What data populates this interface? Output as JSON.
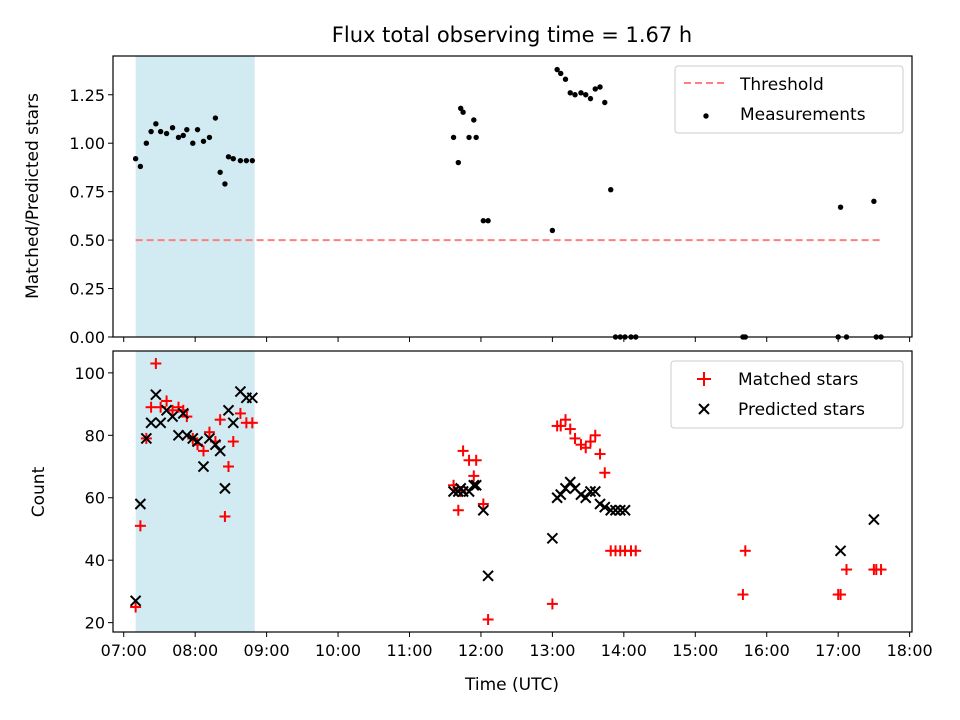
{
  "title": "Flux total observing time = 1.67 h",
  "xlabel": "Time (UTC)",
  "x_ticks": [
    "07:00",
    "08:00",
    "09:00",
    "10:00",
    "11:00",
    "12:00",
    "13:00",
    "14:00",
    "15:00",
    "16:00",
    "17:00",
    "18:00"
  ],
  "chart_data": [
    {
      "type": "scatter",
      "title": "Flux total observing time = 1.67 h",
      "xlabel": "",
      "ylabel": "Matched/Predicted stars",
      "xlim": [
        "06:51",
        "18:02"
      ],
      "ylim": [
        0,
        1.45
      ],
      "y_ticks": [
        "0.00",
        "0.25",
        "0.50",
        "0.75",
        "1.00",
        "1.25"
      ],
      "legend_position": "top-right",
      "shaded_interval": {
        "start": "07:10",
        "end": "08:50",
        "color": "#add8e6"
      },
      "threshold": {
        "name": "Threshold",
        "value": 0.5,
        "x_start": "07:10",
        "x_end": "17:35",
        "color": "#ff7f7f",
        "style": "dashed"
      },
      "series": [
        {
          "name": "Measurements",
          "marker": "dot",
          "color": "#000000",
          "x": [
            "07:10",
            "07:14",
            "07:19",
            "07:23",
            "07:27",
            "07:31",
            "07:36",
            "07:41",
            "07:46",
            "07:50",
            "07:53",
            "07:58",
            "08:02",
            "08:07",
            "08:12",
            "08:17",
            "08:21",
            "08:25",
            "08:28",
            "08:32",
            "08:38",
            "08:43",
            "08:48",
            "11:37",
            "11:41",
            "11:43",
            "11:45",
            "11:50",
            "11:54",
            "11:56",
            "12:02",
            "12:06",
            "13:00",
            "13:04",
            "13:07",
            "13:11",
            "13:15",
            "13:19",
            "13:24",
            "13:28",
            "13:32",
            "13:36",
            "13:40",
            "13:44",
            "13:49",
            "13:53",
            "13:57",
            "14:01",
            "14:06",
            "14:10",
            "15:40",
            "15:42",
            "17:00",
            "17:02",
            "17:07",
            "17:30",
            "17:32",
            "17:36"
          ],
          "y": [
            0.92,
            0.88,
            1.0,
            1.06,
            1.1,
            1.06,
            1.05,
            1.08,
            1.03,
            1.04,
            1.07,
            1.0,
            1.07,
            1.01,
            1.03,
            1.13,
            0.85,
            0.79,
            0.93,
            0.92,
            0.91,
            0.91,
            0.91,
            1.03,
            0.9,
            1.18,
            1.16,
            1.03,
            1.12,
            1.03,
            0.6,
            0.6,
            0.55,
            1.38,
            1.36,
            1.33,
            1.26,
            1.25,
            1.26,
            1.25,
            1.23,
            1.28,
            1.29,
            1.21,
            0.76,
            0.0,
            0.0,
            0.0,
            0.0,
            0.0,
            0.0,
            0.0,
            0.0,
            0.67,
            0.0,
            0.7,
            0.0,
            0.0
          ]
        }
      ]
    },
    {
      "type": "scatter",
      "title": "",
      "xlabel": "Time (UTC)",
      "ylabel": "Count",
      "xlim": [
        "06:51",
        "18:02"
      ],
      "ylim": [
        17,
        107
      ],
      "y_ticks": [
        "20",
        "40",
        "60",
        "80",
        "100"
      ],
      "legend_position": "top-right",
      "shaded_interval": {
        "start": "07:10",
        "end": "08:50",
        "color": "#add8e6"
      },
      "series": [
        {
          "name": "Matched stars",
          "marker": "plus",
          "color": "#ff0000",
          "x": [
            "07:10",
            "07:14",
            "07:19",
            "07:23",
            "07:27",
            "07:31",
            "07:36",
            "07:41",
            "07:46",
            "07:50",
            "07:53",
            "07:58",
            "08:02",
            "08:07",
            "08:12",
            "08:17",
            "08:21",
            "08:25",
            "08:28",
            "08:32",
            "08:38",
            "08:43",
            "08:48",
            "11:37",
            "11:41",
            "11:43",
            "11:45",
            "11:50",
            "11:54",
            "11:56",
            "12:02",
            "12:06",
            "13:00",
            "13:04",
            "13:07",
            "13:11",
            "13:15",
            "13:19",
            "13:24",
            "13:28",
            "13:32",
            "13:36",
            "13:40",
            "13:44",
            "13:49",
            "13:53",
            "13:57",
            "14:01",
            "14:06",
            "14:10",
            "15:40",
            "15:42",
            "17:00",
            "17:02",
            "17:07",
            "17:30",
            "17:32",
            "17:36"
          ],
          "y": [
            25,
            51,
            79,
            89,
            103,
            89,
            91,
            88,
            89,
            88,
            86,
            79,
            77,
            75,
            81,
            78,
            85,
            54,
            70,
            78,
            87,
            84,
            84,
            64,
            56,
            62,
            75,
            72,
            67,
            72,
            58,
            21,
            26,
            83,
            83,
            85,
            82,
            79,
            77,
            76,
            78,
            80,
            74,
            68,
            43,
            43,
            43,
            43,
            43,
            43,
            29,
            43,
            29,
            29,
            37,
            37,
            37,
            37
          ]
        },
        {
          "name": "Predicted stars",
          "marker": "x",
          "color": "#000000",
          "x": [
            "07:10",
            "07:14",
            "07:19",
            "07:23",
            "07:27",
            "07:31",
            "07:36",
            "07:41",
            "07:46",
            "07:50",
            "07:53",
            "07:58",
            "08:02",
            "08:07",
            "08:12",
            "08:17",
            "08:21",
            "08:25",
            "08:28",
            "08:32",
            "08:38",
            "08:43",
            "08:48",
            "11:37",
            "11:41",
            "11:43",
            "11:45",
            "11:50",
            "11:54",
            "11:56",
            "12:02",
            "12:06",
            "13:00",
            "13:04",
            "13:07",
            "13:11",
            "13:15",
            "13:19",
            "13:24",
            "13:28",
            "13:32",
            "13:36",
            "13:40",
            "13:44",
            "13:49",
            "13:53",
            "13:57",
            "14:01",
            "17:02",
            "17:30"
          ],
          "y": [
            27,
            58,
            79,
            84,
            93,
            84,
            88,
            86,
            80,
            87,
            80,
            79,
            78,
            70,
            79,
            77,
            75,
            63,
            88,
            84,
            94,
            92,
            92,
            62,
            62,
            63,
            62,
            62,
            64,
            64,
            56,
            35,
            47,
            60,
            61,
            63,
            65,
            63,
            61,
            60,
            62,
            62,
            58,
            57,
            56,
            56,
            56,
            56,
            43,
            53
          ]
        }
      ]
    }
  ]
}
